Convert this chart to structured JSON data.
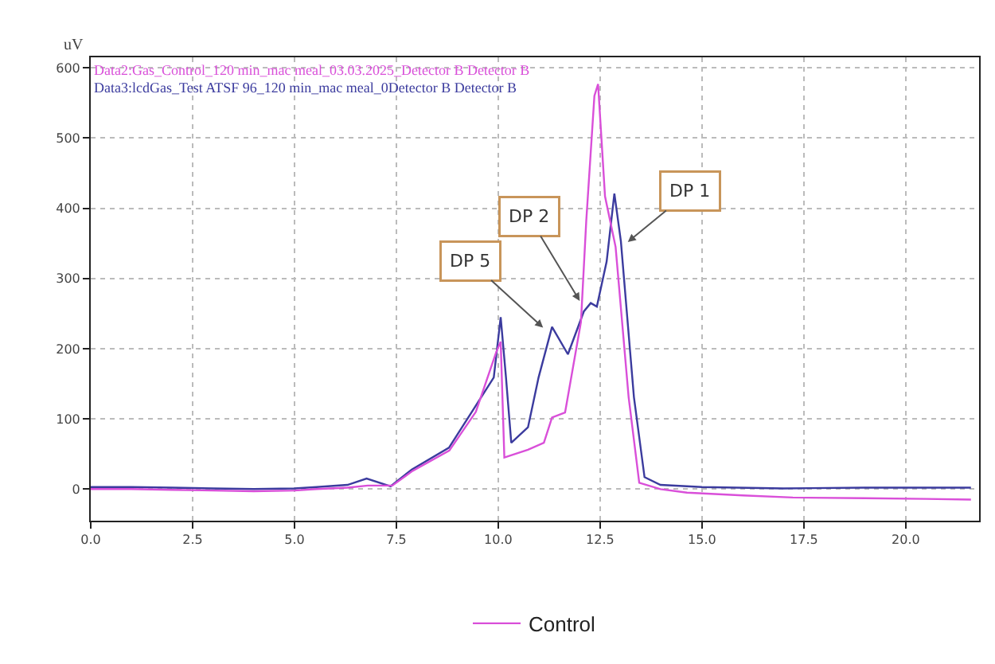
{
  "chart_data": {
    "type": "line",
    "ylabel": "uV",
    "xlim": [
      0,
      21.8
    ],
    "ylim": [
      -45,
      615
    ],
    "xticks": [
      {
        "value": 0,
        "label": "0.0"
      },
      {
        "value": 2.5,
        "label": "2.5"
      },
      {
        "value": 5,
        "label": "5.0"
      },
      {
        "value": 7.5,
        "label": "7.5"
      },
      {
        "value": 10,
        "label": "10.0"
      },
      {
        "value": 12.5,
        "label": "12.5"
      },
      {
        "value": 15,
        "label": "15.0"
      },
      {
        "value": 17.5,
        "label": "17.5"
      },
      {
        "value": 20,
        "label": "20.0"
      }
    ],
    "yticks": [
      0,
      100,
      200,
      300,
      400,
      500,
      600
    ],
    "grid": true,
    "legend": "bottom",
    "line_style": "solid",
    "marker": "none",
    "series": [
      {
        "name": "Control",
        "color": "#d94fd9",
        "x": [
          0,
          1,
          2,
          3,
          4,
          5,
          5.54,
          6.3,
          6.8,
          7.4,
          7.9,
          8.8,
          9.45,
          9.95,
          10.06,
          10.15,
          10.73,
          11.12,
          11.32,
          11.64,
          12.03,
          12.16,
          12.36,
          12.45,
          12.62,
          12.88,
          13.2,
          13.46,
          13.98,
          14.63,
          16,
          17.23,
          19,
          20.5,
          21.6
        ],
        "values": [
          0,
          0,
          -1,
          -2,
          -3,
          -2,
          0,
          2,
          5,
          5,
          26,
          55,
          110,
          195,
          210,
          45,
          56,
          66,
          102,
          109,
          238,
          382,
          560,
          577,
          417,
          345,
          131,
          9,
          0,
          -5,
          -9,
          -12,
          -13,
          -14,
          -15
        ]
      },
      {
        "color": "#3b3b9e",
        "x": [
          0,
          1,
          2,
          3,
          4,
          5,
          5.54,
          6.3,
          6.77,
          7.36,
          7.88,
          8.79,
          9.43,
          9.89,
          10.06,
          10.19,
          10.32,
          10.73,
          10.99,
          11.32,
          11.71,
          12.1,
          12.27,
          12.42,
          12.66,
          12.85,
          13.01,
          13.33,
          13.59,
          13.98,
          15,
          17,
          19,
          21.6
        ],
        "values": [
          3,
          3,
          2,
          1,
          0,
          1,
          3,
          6,
          15,
          4,
          28,
          59,
          117,
          159,
          245,
          159,
          66,
          88,
          159,
          231,
          192,
          253,
          265,
          260,
          324,
          421,
          353,
          131,
          17,
          6,
          3,
          1,
          2,
          2
        ]
      }
    ],
    "annotations": [
      "Data2:Gas_Control_120 min_mac meal_03.03.2025_Detector B Detector B",
      "Data3:lcdGas_Test ATSF 96_120 min_mac meal_0Detector B Detector B",
      {
        "text": "DP 5",
        "x": 11.1,
        "y": 230
      },
      {
        "text": "DP 2",
        "x": 12.0,
        "y": 268
      },
      {
        "text": "DP 1",
        "x": 13.18,
        "y": 352
      }
    ]
  }
}
